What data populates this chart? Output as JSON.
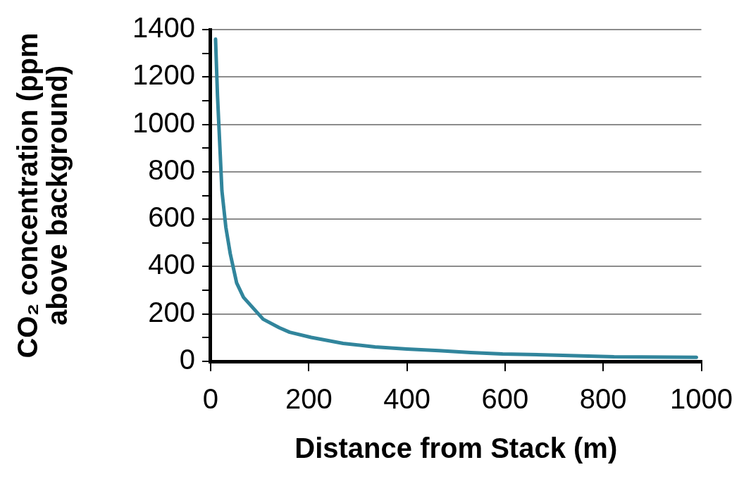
{
  "chart_data": {
    "type": "line",
    "xlabel": "Distance from Stack (m)",
    "ylabel": "CO₂ concentration (ppm above background)",
    "x": [
      10,
      14,
      23,
      31,
      40,
      53,
      67,
      107,
      140,
      161,
      205,
      270,
      335,
      400,
      465,
      530,
      595,
      692,
      822,
      990
    ],
    "series": [
      {
        "color": "#31859c",
        "values": [
          1360,
          1120,
          720,
          566,
          454,
          331,
          270,
          178,
          142,
          123,
          101,
          76,
          61,
          52,
          45,
          37,
          31,
          27,
          19,
          17
        ]
      }
    ],
    "xlim": [
      0,
      1000
    ],
    "xticks": [
      0,
      200,
      400,
      600,
      800,
      1000
    ],
    "ylim": [
      0,
      1400
    ],
    "yticks": [
      0,
      {
        "value": 100,
        "label": null
      },
      200,
      {
        "value": 300,
        "label": null
      },
      400,
      {
        "value": 500,
        "label": null
      },
      600,
      {
        "value": 700,
        "label": null
      },
      800,
      {
        "value": 900,
        "label": null
      },
      1000,
      {
        "value": 1100,
        "label": null
      },
      1200,
      {
        "value": 1300,
        "label": null
      },
      1400
    ],
    "grid": "y",
    "legend": false,
    "marker": "none",
    "line_style": "solid"
  }
}
